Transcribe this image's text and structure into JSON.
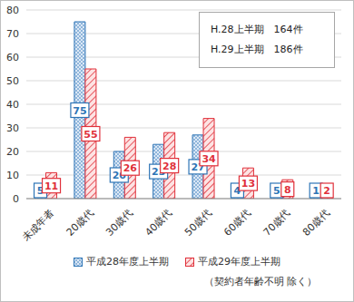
{
  "chart_data": {
    "type": "bar",
    "categories": [
      "未成年者",
      "20歳代",
      "30歳代",
      "40歳代",
      "50歳代",
      "60歳代",
      "70歳代",
      "80歳代"
    ],
    "series": [
      {
        "name": "平成28年度上半期",
        "color": "#2e75b6",
        "values": [
          5,
          75,
          20,
          23,
          27,
          4,
          5,
          1
        ]
      },
      {
        "name": "平成29年度上半期",
        "color": "#e0303a",
        "values": [
          11,
          55,
          26,
          28,
          34,
          13,
          8,
          2
        ]
      }
    ],
    "ylim": [
      0,
      80
    ],
    "yticks": [
      0,
      10,
      20,
      30,
      40,
      50,
      60,
      70,
      80
    ],
    "grid": true,
    "data_labels": true,
    "legend": "bottom",
    "annotations": [
      "H.28上半期　164件",
      "H.29上半期　186件"
    ],
    "note": "（契約者年齢不明 除く）"
  }
}
